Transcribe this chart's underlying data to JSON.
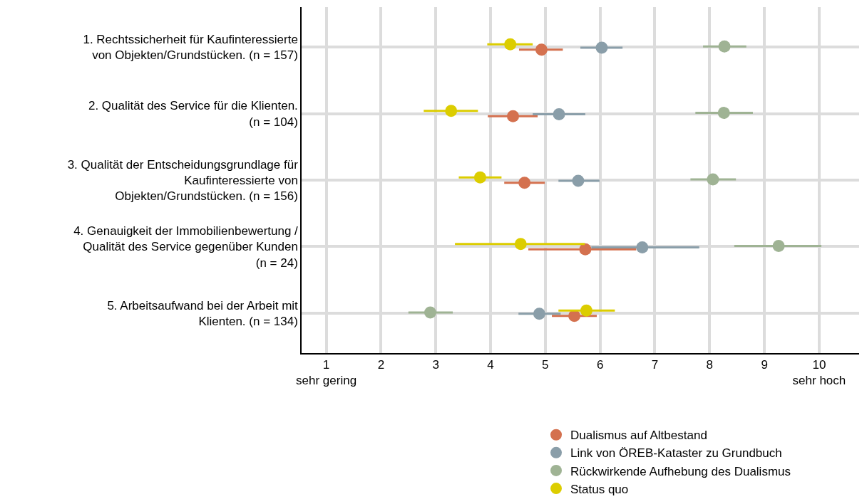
{
  "chart_data": {
    "type": "scatter",
    "categories": [
      "1. Rechtssicherheit für Kaufinteressierte\nvon Objekten/Grundstücken. (n = 157)",
      "2. Qualität des Service für die Klienten.\n(n = 104)",
      "3. Qualität der Entscheidungsgrundlage für\nKaufinteressierte von\nObjekten/Grundstücken. (n = 156)",
      "4. Genauigkeit der Immobilienbewertung /\nQualität des Service gegenüber Kunden\n(n = 24)",
      "5. Arbeitsaufwand bei der Arbeit mit\nKlienten. (n = 134)"
    ],
    "orientation": "horizontal",
    "series": [
      {
        "name": "Dualismus auf Altbestand",
        "color": "#d4714f",
        "values": [
          4.93,
          4.41,
          4.62,
          5.73,
          5.53
        ],
        "errors": [
          [
            4.52,
            5.32
          ],
          [
            3.95,
            4.86
          ],
          [
            4.25,
            4.99
          ],
          [
            4.69,
            6.66
          ],
          [
            5.12,
            5.94
          ]
        ]
      },
      {
        "name": "Link von ÖREB-Kataster zu Grundbuch",
        "color": "#8a9ea9",
        "values": [
          6.03,
          5.25,
          5.6,
          6.77,
          4.89
        ],
        "errors": [
          [
            5.64,
            6.41
          ],
          [
            4.77,
            5.73
          ],
          [
            5.24,
            5.99
          ],
          [
            5.84,
            7.81
          ],
          [
            4.51,
            5.28
          ]
        ]
      },
      {
        "name": "Rückwirkende Aufhebung des Dualismus",
        "color": "#9fb394",
        "values": [
          8.27,
          8.26,
          8.06,
          9.26,
          2.9
        ],
        "errors": [
          [
            7.88,
            8.67
          ],
          [
            7.74,
            8.79
          ],
          [
            7.65,
            8.48
          ],
          [
            8.45,
            10.04
          ],
          [
            2.5,
            3.31
          ]
        ]
      },
      {
        "name": "Status quo",
        "color": "#dccd00",
        "values": [
          4.36,
          3.28,
          3.81,
          4.55,
          5.75
        ],
        "errors": [
          [
            3.94,
            4.77
          ],
          [
            2.78,
            3.77
          ],
          [
            3.42,
            4.2
          ],
          [
            3.35,
            5.72
          ],
          [
            5.24,
            6.27
          ]
        ]
      }
    ],
    "xlim": [
      0.55,
      10.73
    ],
    "xticks": [
      {
        "value": 1,
        "label": "1\nsehr gering"
      },
      2,
      3,
      4,
      5,
      6,
      7,
      8,
      9,
      {
        "value": 10,
        "label": "10\nsehr hoch"
      }
    ],
    "grid": true,
    "legend": "bottom right",
    "marker": "circle"
  }
}
